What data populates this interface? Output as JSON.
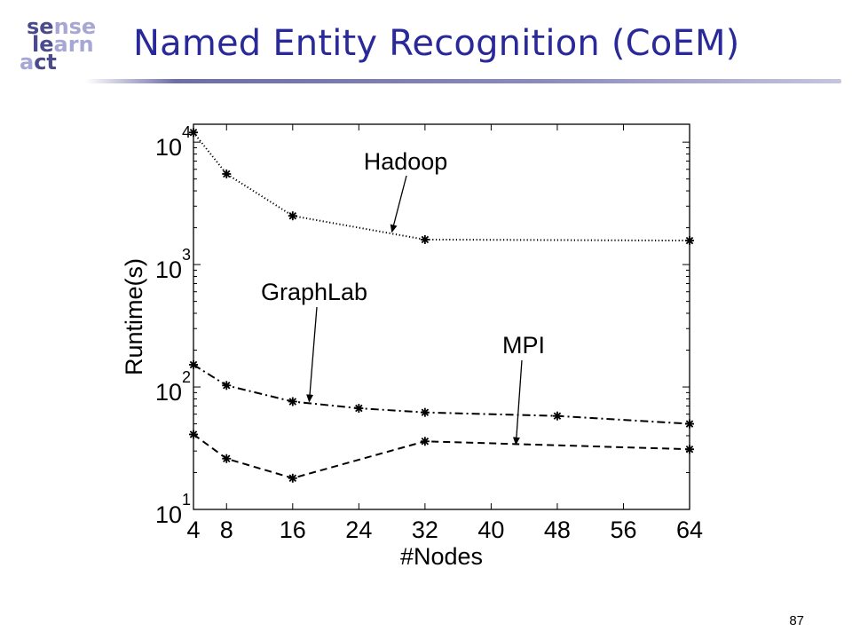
{
  "slide": {
    "title": "Named Entity Recognition (CoEM)",
    "page_number": "87",
    "logo": {
      "line1": [
        "se",
        "nse"
      ],
      "line2": [
        "le",
        "arn"
      ],
      "line3": [
        "a",
        "ct"
      ]
    },
    "colors": {
      "title": "#29299a",
      "logo_dark": "#4a4a8c",
      "logo_light": "#a7a7d6"
    }
  },
  "chart_data": {
    "type": "line",
    "xlabel": "#Nodes",
    "ylabel": "Runtime(s)",
    "xscale": "linear",
    "yscale": "log",
    "xlim": [
      4,
      64
    ],
    "ylim": [
      10,
      14000
    ],
    "xticks": [
      4,
      8,
      16,
      24,
      32,
      40,
      48,
      56,
      64
    ],
    "yticks": [
      {
        "value": 10,
        "base": "10",
        "exp": "1"
      },
      {
        "value": 100,
        "base": "10",
        "exp": "2"
      },
      {
        "value": 1000,
        "base": "10",
        "exp": "3"
      },
      {
        "value": 10000,
        "base": "10",
        "exp": "4"
      }
    ],
    "grid": false,
    "marker": "asterisk",
    "series": [
      {
        "name": "Hadoop",
        "linestyle": "dotted",
        "x": [
          4,
          8,
          16,
          32,
          64
        ],
        "y": [
          12000,
          5500,
          2500,
          1600,
          1570
        ]
      },
      {
        "name": "GraphLab",
        "linestyle": "dashdot",
        "x": [
          4,
          8,
          16,
          24,
          32,
          48,
          64
        ],
        "y": [
          152,
          103,
          76,
          67,
          62,
          58,
          50
        ]
      },
      {
        "name": "MPI",
        "linestyle": "dashed",
        "x": [
          4,
          8,
          16,
          32,
          64
        ],
        "y": [
          41,
          26,
          18,
          36,
          31
        ]
      }
    ],
    "annotations": [
      {
        "text": "Hadoop",
        "series": "Hadoop",
        "arrow_to": [
          28,
          1850
        ]
      },
      {
        "text": "GraphLab",
        "series": "GraphLab",
        "arrow_to": [
          18,
          76
        ]
      },
      {
        "text": "MPI",
        "series": "MPI",
        "arrow_to": [
          43,
          34
        ]
      }
    ]
  }
}
